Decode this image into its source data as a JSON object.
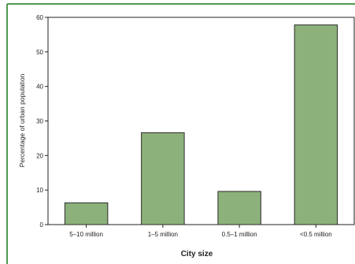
{
  "chart_data": {
    "type": "bar",
    "title": "",
    "xlabel": "City size",
    "ylabel": "Percentage of urban population",
    "categories": [
      "5–10 million",
      "1–5 million",
      "0.5–1 million",
      "<0.5 million"
    ],
    "values": [
      6.3,
      26.6,
      9.6,
      57.8
    ],
    "ylim": [
      0,
      60
    ],
    "yticks": [
      "0",
      "10",
      "20",
      "30",
      "40",
      "50",
      "60"
    ],
    "grid": false,
    "legend": "none",
    "colors": {
      "bar_fill": "#8db17b",
      "bar_stroke": "#2a2a2a",
      "frame_border": "#4e9a4e",
      "axis": "#222222"
    }
  }
}
